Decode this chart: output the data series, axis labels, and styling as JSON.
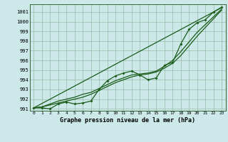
{
  "xlabel": "Graphe pression niveau de la mer (hPa)",
  "background_color": "#cce8e8",
  "grid_color": "#99bbaa",
  "line_color": "#1a5c1a",
  "x_ticks": [
    0,
    1,
    2,
    3,
    4,
    5,
    6,
    7,
    8,
    9,
    10,
    11,
    12,
    13,
    14,
    15,
    16,
    17,
    18,
    19,
    20,
    21,
    22,
    23
  ],
  "ylim": [
    990.8,
    1001.8
  ],
  "y_ticks": [
    991,
    992,
    993,
    994,
    995,
    996,
    997,
    998,
    999,
    1000,
    1001
  ],
  "series_main": [
    991.1,
    991.1,
    991.0,
    991.5,
    991.7,
    991.5,
    991.6,
    991.8,
    993.0,
    993.9,
    994.4,
    994.7,
    994.9,
    994.5,
    994.0,
    994.2,
    995.5,
    995.8,
    997.7,
    999.2,
    999.9,
    1000.2,
    1001.0,
    1001.5
  ],
  "series_smooth1": [
    991.1,
    991.2,
    991.4,
    991.6,
    991.8,
    992.0,
    992.2,
    992.5,
    992.9,
    993.3,
    993.7,
    994.0,
    994.3,
    994.5,
    994.6,
    994.8,
    995.2,
    995.7,
    996.5,
    997.5,
    998.5,
    999.4,
    1000.3,
    1001.2
  ],
  "series_smooth2": [
    991.1,
    991.2,
    991.5,
    991.8,
    992.0,
    992.2,
    992.5,
    992.7,
    993.1,
    993.5,
    993.9,
    994.2,
    994.5,
    994.6,
    994.7,
    994.9,
    995.4,
    996.0,
    996.9,
    997.9,
    998.9,
    999.7,
    1000.5,
    1001.3
  ],
  "series_linear": [
    991.1,
    991.55,
    992.0,
    992.45,
    992.9,
    993.35,
    993.8,
    994.25,
    994.7,
    995.15,
    995.6,
    996.05,
    996.5,
    996.95,
    997.4,
    997.85,
    998.3,
    998.75,
    999.2,
    999.65,
    1000.1,
    1000.55,
    1001.0,
    1001.45
  ]
}
